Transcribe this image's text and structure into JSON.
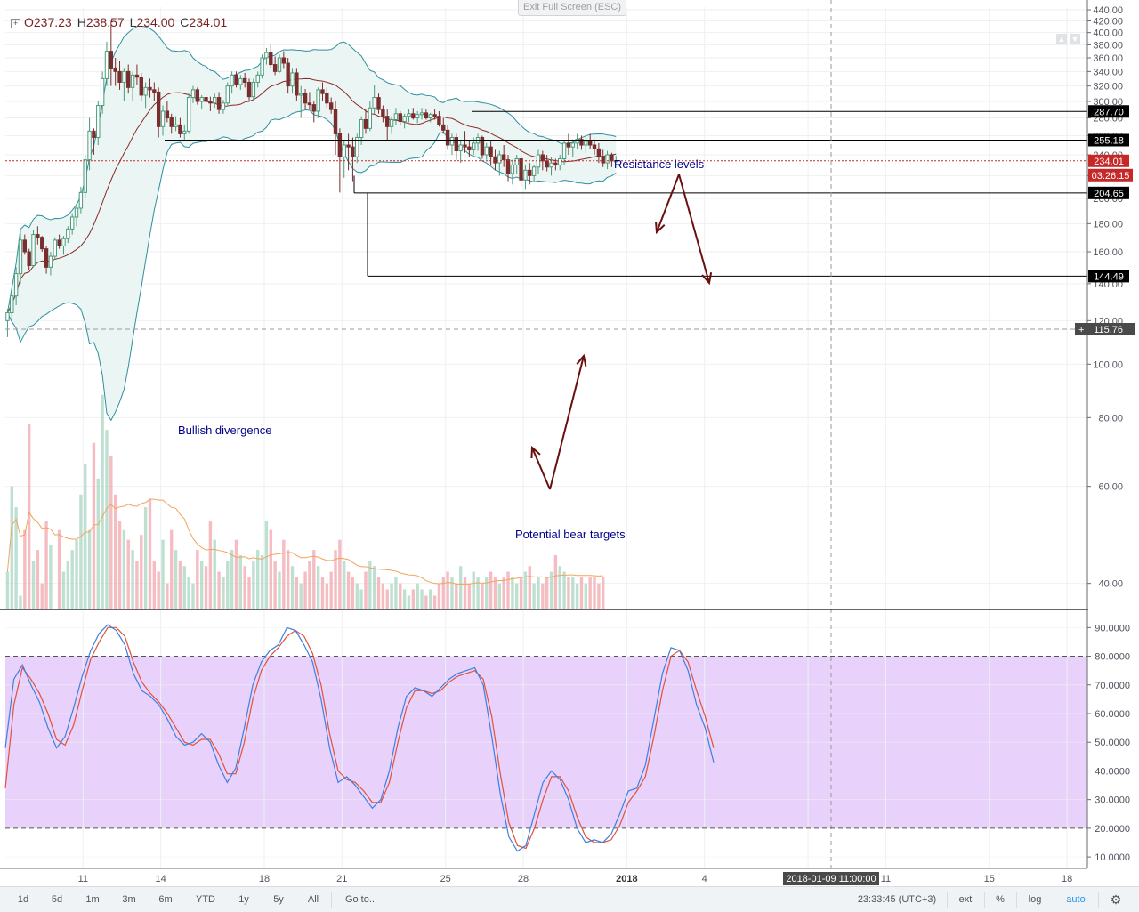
{
  "legend": {
    "toggle_icon": "plus-square-icon",
    "open_label": "O",
    "open": "237.23",
    "high_label": "H",
    "high": "238.57",
    "low_label": "L",
    "low": "234.00",
    "close_label": "C",
    "close": "234.01"
  },
  "exit_fullscreen_label": "Exit Full Screen (ESC)",
  "colors": {
    "up": "#4a9a7a",
    "down": "#7a2d2d",
    "bb_band": "#2e8fa0",
    "bb_fill": "#e9f5f3",
    "basis": "#8b2a2a",
    "stoch_k": "#3d7fe0",
    "stoch_d": "#e0523a",
    "stoch_zone": "#e8d2fb",
    "annotation": "#00008b",
    "arrow": "#6a0f0f",
    "last_price_line": "#c62828"
  },
  "chart_data": [
    {
      "type": "candlestick",
      "yscale": "log",
      "ylim": [
        36,
        445
      ],
      "yticks": [
        "40.00",
        "60.00",
        "80.00",
        "100.00",
        "120.00",
        "140.00",
        "160.00",
        "180.00",
        "200.00",
        "220.00",
        "240.00",
        "260.00",
        "280.00",
        "300.00",
        "320.00",
        "340.00",
        "360.00",
        "380.00",
        "400.00",
        "420.00",
        "440.00"
      ],
      "xticks": [
        "11",
        "14",
        "18",
        "21",
        "25",
        "28",
        "2018",
        "4",
        "8",
        "11",
        "15",
        "18"
      ],
      "x_start": "2017-12-08",
      "x_step_hours": 4,
      "x_end_visible": "2018-01-21",
      "candles_ohlc": [
        [
          120,
          126,
          112,
          124
        ],
        [
          124,
          135,
          120,
          133
        ],
        [
          133,
          150,
          128,
          146
        ],
        [
          146,
          175,
          140,
          168
        ],
        [
          168,
          172,
          158,
          160
        ],
        [
          160,
          162,
          148,
          151
        ],
        [
          151,
          175,
          150,
          172
        ],
        [
          172,
          178,
          165,
          170
        ],
        [
          170,
          171,
          160,
          162
        ],
        [
          162,
          164,
          146,
          150
        ],
        [
          150,
          160,
          145,
          157
        ],
        [
          157,
          170,
          155,
          168
        ],
        [
          168,
          172,
          162,
          164
        ],
        [
          164,
          171,
          158,
          169
        ],
        [
          169,
          178,
          166,
          176
        ],
        [
          176,
          188,
          172,
          185
        ],
        [
          185,
          196,
          178,
          192
        ],
        [
          192,
          210,
          188,
          205
        ],
        [
          205,
          240,
          200,
          235
        ],
        [
          235,
          280,
          225,
          265
        ],
        [
          265,
          268,
          240,
          258
        ],
        [
          258,
          300,
          250,
          295
        ],
        [
          295,
          340,
          285,
          330
        ],
        [
          330,
          385,
          320,
          370
        ],
        [
          370,
          420,
          320,
          345
        ],
        [
          345,
          360,
          320,
          340
        ],
        [
          340,
          355,
          315,
          325
        ],
        [
          325,
          345,
          300,
          340
        ],
        [
          340,
          350,
          310,
          318
        ],
        [
          318,
          340,
          300,
          335
        ],
        [
          335,
          350,
          322,
          332
        ],
        [
          332,
          338,
          300,
          308
        ],
        [
          308,
          325,
          292,
          318
        ],
        [
          318,
          330,
          305,
          315
        ],
        [
          315,
          325,
          300,
          312
        ],
        [
          312,
          318,
          258,
          270
        ],
        [
          270,
          295,
          260,
          288
        ],
        [
          288,
          300,
          275,
          280
        ],
        [
          280,
          285,
          262,
          270
        ],
        [
          270,
          282,
          265,
          272
        ],
        [
          272,
          280,
          258,
          262
        ],
        [
          262,
          272,
          255,
          265
        ],
        [
          265,
          310,
          262,
          305
        ],
        [
          305,
          320,
          298,
          315
        ],
        [
          315,
          318,
          296,
          300
        ],
        [
          300,
          308,
          290,
          305
        ],
        [
          305,
          312,
          295,
          300
        ],
        [
          300,
          306,
          288,
          298
        ],
        [
          298,
          310,
          292,
          305
        ],
        [
          305,
          312,
          285,
          290
        ],
        [
          290,
          302,
          285,
          298
        ],
        [
          298,
          325,
          295,
          320
        ],
        [
          320,
          340,
          310,
          335
        ],
        [
          335,
          340,
          318,
          322
        ],
        [
          322,
          335,
          315,
          330
        ],
        [
          330,
          338,
          318,
          325
        ],
        [
          325,
          330,
          300,
          306
        ],
        [
          306,
          330,
          300,
          325
        ],
        [
          325,
          340,
          318,
          335
        ],
        [
          335,
          365,
          330,
          360
        ],
        [
          360,
          375,
          350,
          368
        ],
        [
          368,
          380,
          345,
          350
        ],
        [
          350,
          362,
          335,
          340
        ],
        [
          340,
          365,
          338,
          360
        ],
        [
          360,
          370,
          345,
          352
        ],
        [
          352,
          360,
          310,
          320
        ],
        [
          320,
          345,
          310,
          338
        ],
        [
          338,
          345,
          300,
          308
        ],
        [
          308,
          320,
          280,
          310
        ],
        [
          310,
          316,
          290,
          298
        ],
        [
          298,
          312,
          290,
          296
        ],
        [
          296,
          300,
          275,
          288
        ],
        [
          288,
          318,
          280,
          315
        ],
        [
          315,
          325,
          300,
          310
        ],
        [
          310,
          318,
          292,
          298
        ],
        [
          298,
          305,
          285,
          290
        ],
        [
          290,
          300,
          240,
          262
        ],
        [
          262,
          268,
          205,
          238
        ],
        [
          238,
          255,
          218,
          250
        ],
        [
          250,
          262,
          225,
          248
        ],
        [
          248,
          258,
          215,
          238
        ],
        [
          238,
          262,
          232,
          258
        ],
        [
          258,
          282,
          250,
          278
        ],
        [
          278,
          290,
          262,
          268
        ],
        [
          268,
          300,
          265,
          292
        ],
        [
          292,
          322,
          285,
          305
        ],
        [
          305,
          310,
          285,
          290
        ],
        [
          290,
          295,
          275,
          282
        ],
        [
          282,
          290,
          255,
          270
        ],
        [
          270,
          282,
          262,
          278
        ],
        [
          278,
          292,
          272,
          285
        ],
        [
          285,
          288,
          272,
          276
        ],
        [
          276,
          285,
          268,
          282
        ],
        [
          282,
          290,
          275,
          285
        ],
        [
          285,
          292,
          278,
          280
        ],
        [
          280,
          288,
          274,
          284
        ],
        [
          284,
          292,
          278,
          286
        ],
        [
          286,
          290,
          278,
          280
        ],
        [
          280,
          286,
          275,
          284
        ],
        [
          284,
          290,
          278,
          282
        ],
        [
          282,
          288,
          270,
          272
        ],
        [
          272,
          280,
          262,
          266
        ],
        [
          266,
          272,
          245,
          250
        ],
        [
          250,
          262,
          240,
          258
        ],
        [
          258,
          262,
          235,
          244
        ],
        [
          244,
          255,
          232,
          250
        ],
        [
          250,
          265,
          242,
          248
        ],
        [
          248,
          255,
          238,
          245
        ],
        [
          245,
          258,
          240,
          252
        ],
        [
          252,
          262,
          244,
          258
        ],
        [
          258,
          260,
          236,
          240
        ],
        [
          240,
          252,
          235,
          248
        ],
        [
          248,
          254,
          230,
          238
        ],
        [
          238,
          245,
          225,
          232
        ],
        [
          232,
          244,
          220,
          240
        ],
        [
          240,
          250,
          228,
          235
        ],
        [
          235,
          240,
          215,
          222
        ],
        [
          222,
          235,
          212,
          230
        ],
        [
          230,
          240,
          222,
          236
        ],
        [
          236,
          240,
          210,
          216
        ],
        [
          216,
          230,
          208,
          225
        ],
        [
          225,
          232,
          212,
          220
        ],
        [
          220,
          230,
          214,
          228
        ],
        [
          228,
          245,
          222,
          240
        ],
        [
          240,
          244,
          225,
          234
        ],
        [
          234,
          240,
          224,
          228
        ],
        [
          228,
          238,
          220,
          232
        ],
        [
          232,
          236,
          225,
          230
        ],
        [
          230,
          240,
          225,
          236
        ],
        [
          236,
          255,
          230,
          252
        ],
        [
          252,
          262,
          240,
          248
        ],
        [
          248,
          256,
          238,
          252
        ],
        [
          252,
          262,
          246,
          256
        ],
        [
          256,
          260,
          245,
          250
        ],
        [
          250,
          258,
          242,
          254
        ],
        [
          254,
          262,
          246,
          250
        ],
        [
          250,
          256,
          240,
          246
        ],
        [
          246,
          252,
          232,
          238
        ],
        [
          238,
          245,
          228,
          232
        ],
        [
          232,
          244,
          226,
          240
        ],
        [
          240,
          242,
          228,
          234
        ],
        [
          234,
          239,
          234,
          234
        ]
      ],
      "volume": [
        42,
        60,
        55,
        38,
        50,
        78,
        44,
        46,
        40,
        52,
        47,
        36,
        50,
        42,
        44,
        46,
        48,
        58,
        66,
        50,
        72,
        62,
        88,
        76,
        68,
        58,
        52,
        50,
        48,
        46,
        44,
        49,
        55,
        57,
        44,
        42,
        48,
        40,
        50,
        46,
        44,
        43,
        41,
        40,
        46,
        44,
        43,
        52,
        48,
        42,
        41,
        44,
        46,
        48,
        45,
        43,
        41,
        44,
        46,
        45,
        52,
        50,
        44,
        42,
        48,
        46,
        43,
        41,
        40,
        42,
        44,
        46,
        43,
        41,
        40,
        42,
        46,
        48,
        44,
        42,
        41,
        40,
        39,
        42,
        44,
        43,
        41,
        40,
        39,
        40,
        41,
        40,
        39,
        38,
        39,
        40,
        39,
        38,
        39,
        38,
        40,
        41,
        42,
        41,
        40,
        43,
        41,
        40,
        42,
        41,
        40,
        41,
        42,
        41,
        40,
        41,
        42,
        41,
        40,
        41,
        42,
        43,
        40,
        41,
        40,
        41,
        42,
        45,
        43,
        42,
        41,
        41,
        40,
        41,
        40,
        41,
        41,
        40,
        41
      ],
      "price_lines": [
        {
          "value": 287.7,
          "label": "287.70"
        },
        {
          "value": 255.18,
          "label": "255.18"
        },
        {
          "value": 204.65,
          "label": "204.65"
        },
        {
          "value": 144.49,
          "label": "144.49"
        }
      ],
      "last_price": {
        "value": 234.01,
        "label": "234.01",
        "countdown": "03:26:15"
      },
      "crosshair": {
        "value": 115.76,
        "label": "115.76",
        "time_label": "2018-01-09 11:00:00"
      },
      "annotations": [
        {
          "text": "Resistance levels"
        },
        {
          "text": "Bullish divergence"
        },
        {
          "text": "Potential bear targets"
        }
      ]
    },
    {
      "type": "line",
      "ylim": [
        6,
        96
      ],
      "yticks": [
        "10.0000",
        "20.0000",
        "30.0000",
        "40.0000",
        "50.0000",
        "60.0000",
        "70.0000",
        "80.0000",
        "90.0000"
      ],
      "zone": [
        20,
        80
      ],
      "series": [
        {
          "key": "k",
          "values": [
            48,
            72,
            77,
            70,
            64,
            55,
            48,
            52,
            62,
            73,
            82,
            88,
            91,
            89,
            84,
            74,
            68,
            66,
            63,
            58,
            52,
            49,
            50,
            53,
            50,
            42,
            36,
            41,
            55,
            70,
            78,
            82,
            84,
            90,
            89,
            84,
            78,
            65,
            48,
            36,
            38,
            35,
            31,
            27,
            30,
            40,
            55,
            66,
            69,
            68,
            66,
            69,
            72,
            74,
            75,
            76,
            70,
            52,
            32,
            17,
            12,
            14,
            25,
            36,
            40,
            37,
            30,
            20,
            15,
            16,
            15,
            18,
            25,
            33,
            34,
            42,
            58,
            74,
            83,
            82,
            75,
            63,
            55,
            43
          ]
        },
        {
          "key": "d",
          "values": [
            34,
            63,
            76,
            72,
            67,
            60,
            51,
            49,
            56,
            68,
            79,
            85,
            90,
            90,
            87,
            78,
            71,
            67,
            64,
            60,
            55,
            50,
            49,
            51,
            51,
            46,
            39,
            39,
            50,
            65,
            75,
            80,
            83,
            87,
            89,
            87,
            81,
            70,
            53,
            40,
            37,
            36,
            33,
            29,
            29,
            36,
            50,
            62,
            68,
            68,
            67,
            68,
            71,
            73,
            74,
            75,
            72,
            59,
            39,
            22,
            14,
            13,
            20,
            30,
            38,
            38,
            33,
            24,
            17,
            15,
            15,
            16,
            21,
            29,
            33,
            38,
            52,
            68,
            80,
            82,
            78,
            68,
            59,
            48
          ]
        }
      ]
    }
  ],
  "bottom_bar": {
    "ranges": [
      "1d",
      "5d",
      "1m",
      "3m",
      "6m",
      "YTD",
      "1y",
      "5y",
      "All"
    ],
    "goto_label": "Go to...",
    "clock": "23:33:45 (UTC+3)",
    "ext_label": "ext",
    "percent_label": "%",
    "log_label": "log",
    "auto_label": "auto",
    "settings_icon": "gear-icon"
  }
}
